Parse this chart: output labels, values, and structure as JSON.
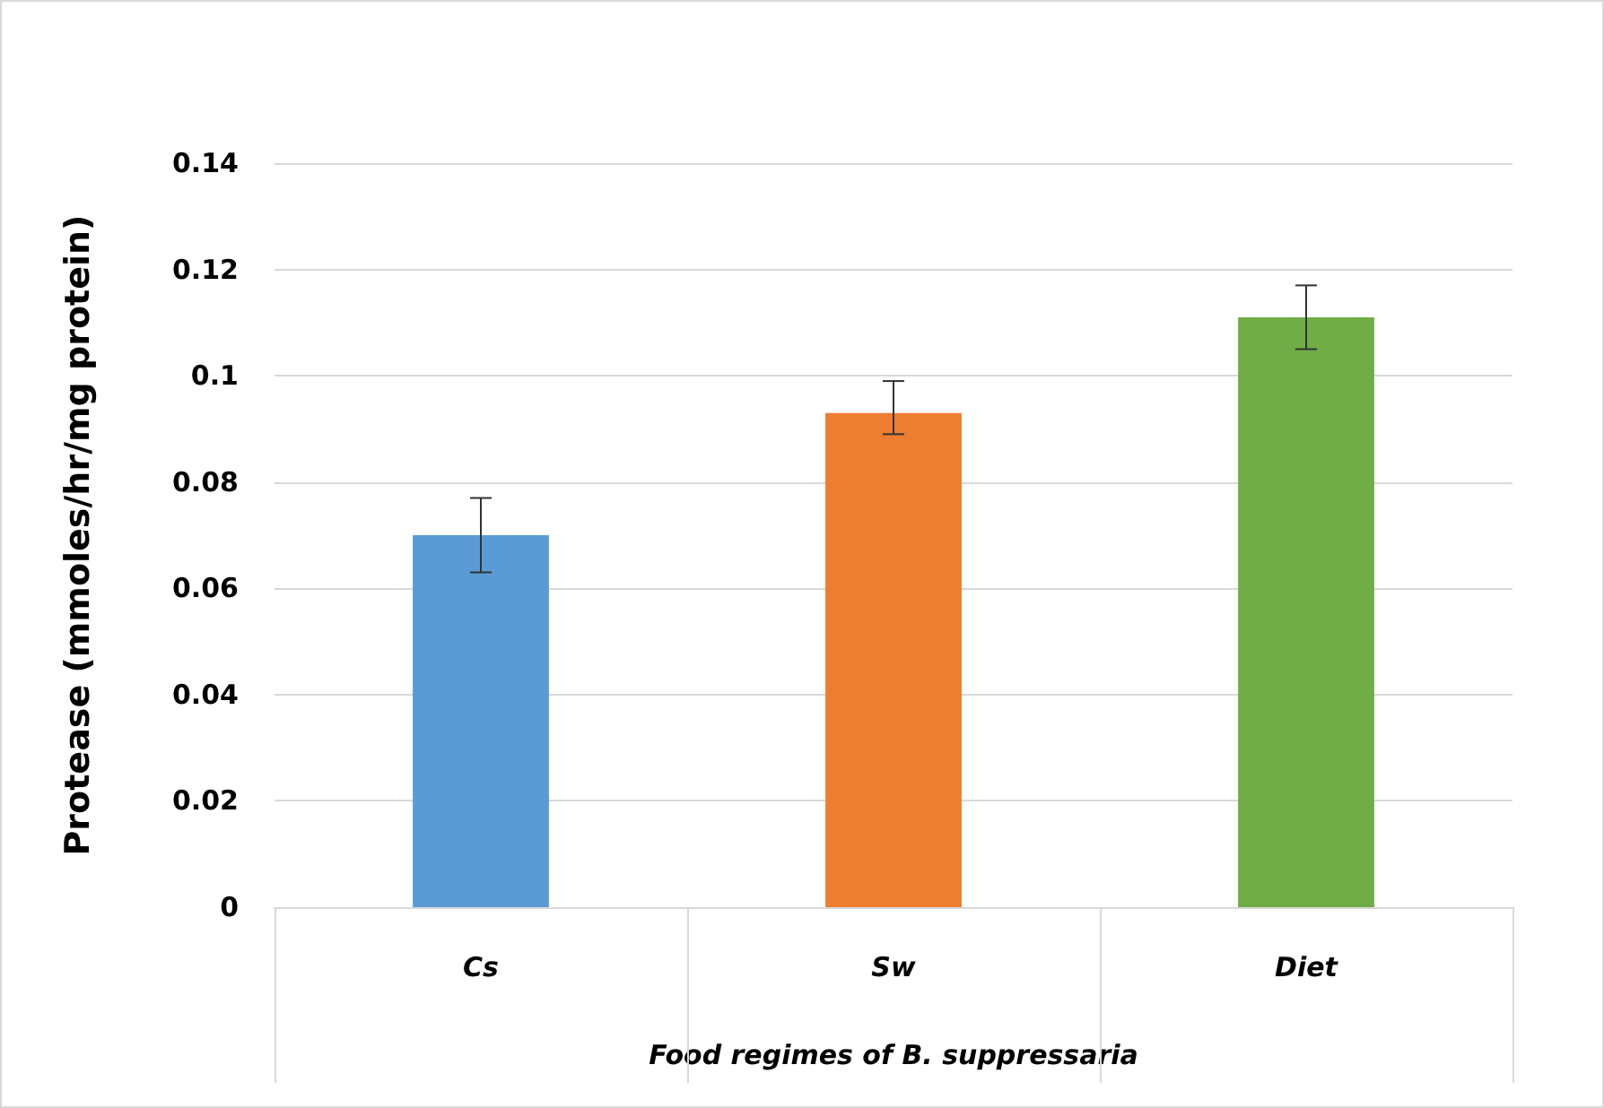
{
  "chart_data": {
    "type": "bar",
    "xlabel": "Food regimes of B. suppressaria",
    "ylabel": "Protease (mmoles/hr/mg protein)",
    "categories": [
      "Cs",
      "Sw",
      "Diet"
    ],
    "values": [
      0.07,
      0.093,
      0.111
    ],
    "colors": [
      "#5b9bd5",
      "#ed7d31",
      "#70ad47"
    ],
    "errors": [
      [
        0.063,
        0.077
      ],
      [
        0.089,
        0.099
      ],
      [
        0.105,
        0.117
      ]
    ],
    "ylim": [
      0,
      0.14
    ],
    "yticks": [
      0,
      0.02,
      0.04,
      0.06,
      0.08,
      0.1,
      0.12,
      0.14
    ],
    "grid": "y"
  }
}
